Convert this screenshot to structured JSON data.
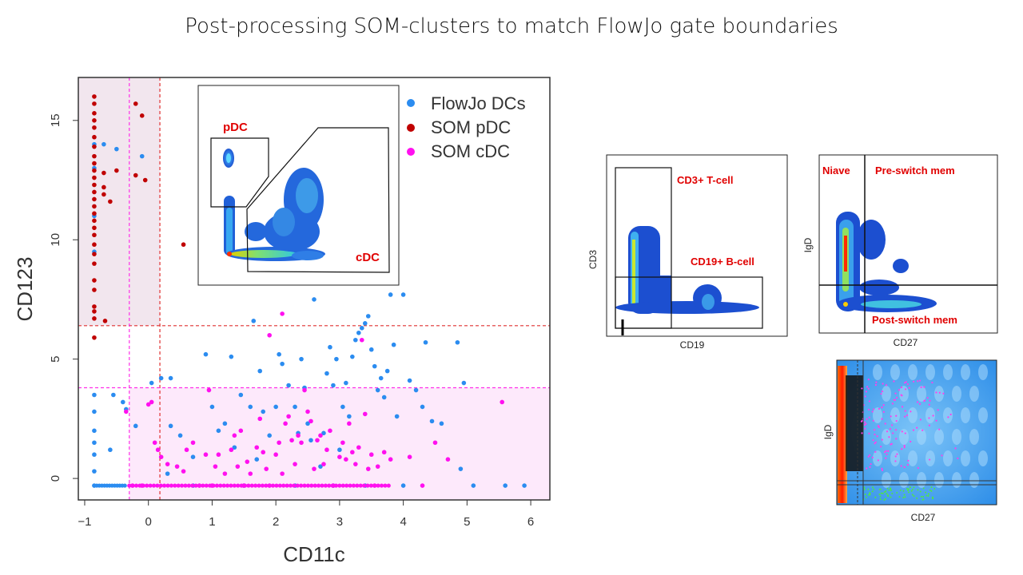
{
  "slide": {
    "title": "Post-processing SOM-clusters to match FlowJo gate boundaries"
  },
  "colors": {
    "flowjo_dc": "#2b8cf0",
    "som_pdc": "#c00000",
    "som_cdc": "#ff10ef",
    "pdc_region": "#f2e6ee",
    "cdc_region": "#fde9fb",
    "threshold_red": "#e03030",
    "threshold_magenta": "#ff30e8"
  },
  "chart_data": [
    {
      "type": "scatter",
      "title": "",
      "xlabel": "CD11c",
      "ylabel": "CD123",
      "xlim": [
        -1.1,
        6.3
      ],
      "ylim": [
        -0.9,
        16.8
      ],
      "xticks": [
        "-1",
        "0",
        "1",
        "2",
        "3",
        "4",
        "5",
        "6"
      ],
      "yticks": [
        "0",
        "5",
        "10",
        "15"
      ],
      "legend_position": "top-right",
      "thresholds": {
        "pdc_x": 0.18,
        "pdc_y": 6.4,
        "cdc_x": -0.3,
        "cdc_y": 3.8
      },
      "series": [
        {
          "name": "FlowJo DCs",
          "points": [
            [
              -0.85,
              -0.3
            ],
            [
              -0.85,
              0.3
            ],
            [
              -0.85,
              1.0
            ],
            [
              -0.85,
              1.5
            ],
            [
              -0.85,
              2.0
            ],
            [
              -0.85,
              2.8
            ],
            [
              -0.85,
              3.5
            ],
            [
              -0.85,
              14.0
            ],
            [
              -0.85,
              13.0
            ],
            [
              -0.85,
              11.0
            ],
            [
              -0.85,
              9.5
            ],
            [
              -0.7,
              14.0
            ],
            [
              -0.5,
              13.8
            ],
            [
              -0.55,
              3.5
            ],
            [
              -0.4,
              3.2
            ],
            [
              -0.35,
              2.9
            ],
            [
              -0.2,
              2.2
            ],
            [
              -0.6,
              1.2
            ],
            [
              -0.1,
              13.5
            ],
            [
              0.05,
              4.0
            ],
            [
              0.2,
              4.2
            ],
            [
              0.35,
              4.2
            ],
            [
              0.35,
              2.2
            ],
            [
              0.5,
              1.8
            ],
            [
              0.7,
              0.9
            ],
            [
              0.3,
              0.2
            ],
            [
              0.9,
              5.2
            ],
            [
              1.0,
              3.0
            ],
            [
              1.1,
              2.0
            ],
            [
              1.2,
              2.3
            ],
            [
              1.3,
              5.1
            ],
            [
              1.35,
              1.3
            ],
            [
              1.45,
              3.5
            ],
            [
              1.6,
              3.0
            ],
            [
              1.75,
              4.5
            ],
            [
              1.8,
              2.8
            ],
            [
              1.9,
              1.8
            ],
            [
              1.7,
              0.8
            ],
            [
              1.65,
              6.6
            ],
            [
              2.0,
              3.0
            ],
            [
              2.05,
              5.2
            ],
            [
              2.1,
              4.8
            ],
            [
              2.2,
              3.9
            ],
            [
              2.3,
              3.0
            ],
            [
              2.35,
              1.9
            ],
            [
              2.4,
              5.0
            ],
            [
              2.45,
              3.8
            ],
            [
              2.5,
              2.3
            ],
            [
              2.55,
              1.6
            ],
            [
              2.6,
              7.5
            ],
            [
              2.7,
              0.5
            ],
            [
              2.75,
              1.9
            ],
            [
              2.8,
              4.4
            ],
            [
              2.85,
              5.5
            ],
            [
              2.9,
              3.9
            ],
            [
              2.95,
              5.0
            ],
            [
              3.0,
              1.2
            ],
            [
              3.05,
              3.0
            ],
            [
              3.1,
              4.0
            ],
            [
              3.15,
              2.6
            ],
            [
              3.2,
              5.1
            ],
            [
              3.25,
              5.8
            ],
            [
              3.3,
              6.1
            ],
            [
              3.35,
              6.3
            ],
            [
              3.4,
              6.5
            ],
            [
              3.45,
              6.8
            ],
            [
              3.5,
              5.4
            ],
            [
              3.55,
              4.7
            ],
            [
              3.6,
              3.7
            ],
            [
              3.65,
              4.2
            ],
            [
              3.7,
              3.4
            ],
            [
              3.75,
              4.5
            ],
            [
              3.8,
              7.7
            ],
            [
              3.85,
              5.6
            ],
            [
              3.9,
              2.6
            ],
            [
              4.0,
              7.7
            ],
            [
              4.1,
              4.1
            ],
            [
              4.2,
              3.7
            ],
            [
              4.3,
              3.0
            ],
            [
              4.35,
              5.7
            ],
            [
              4.45,
              2.4
            ],
            [
              4.6,
              2.3
            ],
            [
              4.85,
              5.7
            ],
            [
              4.95,
              4.0
            ],
            [
              4.9,
              0.4
            ],
            [
              5.6,
              -0.3
            ],
            [
              5.9,
              -0.3
            ],
            [
              5.1,
              -0.3
            ],
            [
              4.0,
              -0.3
            ],
            [
              3.4,
              -0.3
            ],
            [
              2.9,
              -0.3
            ],
            [
              0.7,
              -0.3
            ],
            [
              1.5,
              -0.3
            ],
            [
              2.3,
              -0.3
            ]
          ]
        },
        {
          "name": "SOM pDC",
          "points": [
            [
              -0.85,
              16.0
            ],
            [
              -0.85,
              15.7
            ],
            [
              -0.85,
              15.3
            ],
            [
              -0.85,
              15.0
            ],
            [
              -0.85,
              14.7
            ],
            [
              -0.85,
              14.3
            ],
            [
              -0.85,
              13.9
            ],
            [
              -0.85,
              13.5
            ],
            [
              -0.85,
              13.2
            ],
            [
              -0.85,
              12.9
            ],
            [
              -0.85,
              12.6
            ],
            [
              -0.85,
              12.3
            ],
            [
              -0.85,
              12.0
            ],
            [
              -0.85,
              11.7
            ],
            [
              -0.85,
              11.4
            ],
            [
              -0.85,
              11.1
            ],
            [
              -0.85,
              10.8
            ],
            [
              -0.85,
              10.5
            ],
            [
              -0.85,
              10.2
            ],
            [
              -0.85,
              9.8
            ],
            [
              -0.85,
              9.4
            ],
            [
              -0.85,
              9.0
            ],
            [
              -0.85,
              8.3
            ],
            [
              -0.85,
              7.9
            ],
            [
              -0.85,
              7.2
            ],
            [
              -0.85,
              7.0
            ],
            [
              -0.85,
              6.7
            ],
            [
              -0.85,
              5.9
            ],
            [
              -0.7,
              12.8
            ],
            [
              -0.7,
              12.2
            ],
            [
              -0.7,
              11.9
            ],
            [
              -0.68,
              6.6
            ],
            [
              -0.6,
              11.6
            ],
            [
              -0.5,
              12.9
            ],
            [
              -0.2,
              15.7
            ],
            [
              -0.1,
              15.2
            ],
            [
              -0.2,
              12.7
            ],
            [
              -0.05,
              12.5
            ],
            [
              0.55,
              9.8
            ]
          ]
        },
        {
          "name": "SOM cDC",
          "points": [
            [
              -0.35,
              2.8
            ],
            [
              -0.25,
              -0.3
            ],
            [
              -0.1,
              -0.3
            ],
            [
              0.0,
              3.1
            ],
            [
              0.05,
              3.2
            ],
            [
              0.1,
              1.5
            ],
            [
              0.15,
              1.2
            ],
            [
              0.2,
              0.9
            ],
            [
              0.3,
              0.6
            ],
            [
              0.45,
              0.5
            ],
            [
              0.55,
              0.3
            ],
            [
              0.6,
              1.2
            ],
            [
              0.7,
              1.5
            ],
            [
              0.8,
              -0.3
            ],
            [
              0.9,
              1.0
            ],
            [
              0.95,
              3.7
            ],
            [
              1.0,
              -0.3
            ],
            [
              1.05,
              0.5
            ],
            [
              1.1,
              1.0
            ],
            [
              1.2,
              0.2
            ],
            [
              1.3,
              1.2
            ],
            [
              1.35,
              1.8
            ],
            [
              1.4,
              0.5
            ],
            [
              1.45,
              2.0
            ],
            [
              1.5,
              -0.3
            ],
            [
              1.55,
              0.7
            ],
            [
              1.6,
              0.2
            ],
            [
              1.7,
              1.3
            ],
            [
              1.75,
              2.5
            ],
            [
              1.8,
              1.1
            ],
            [
              1.85,
              0.4
            ],
            [
              1.9,
              -0.3
            ],
            [
              2.0,
              1.0
            ],
            [
              2.05,
              1.5
            ],
            [
              2.1,
              0.2
            ],
            [
              2.15,
              2.3
            ],
            [
              2.2,
              2.6
            ],
            [
              2.25,
              1.6
            ],
            [
              2.3,
              0.6
            ],
            [
              2.35,
              1.8
            ],
            [
              2.4,
              1.5
            ],
            [
              2.45,
              3.7
            ],
            [
              2.5,
              2.8
            ],
            [
              2.55,
              2.4
            ],
            [
              2.6,
              0.4
            ],
            [
              2.65,
              1.6
            ],
            [
              2.7,
              1.8
            ],
            [
              2.75,
              0.6
            ],
            [
              2.8,
              1.2
            ],
            [
              2.85,
              2.0
            ],
            [
              2.9,
              -0.3
            ],
            [
              3.0,
              0.9
            ],
            [
              3.05,
              1.5
            ],
            [
              3.1,
              0.8
            ],
            [
              3.15,
              2.3
            ],
            [
              3.2,
              1.1
            ],
            [
              3.25,
              0.6
            ],
            [
              3.3,
              1.3
            ],
            [
              3.35,
              5.8
            ],
            [
              3.4,
              2.7
            ],
            [
              3.45,
              0.4
            ],
            [
              3.5,
              1.0
            ],
            [
              3.55,
              -0.3
            ],
            [
              3.6,
              0.5
            ],
            [
              3.7,
              1.1
            ],
            [
              3.8,
              0.8
            ],
            [
              4.1,
              0.9
            ],
            [
              4.3,
              -0.3
            ],
            [
              4.5,
              1.5
            ],
            [
              4.7,
              0.8
            ],
            [
              5.55,
              3.2
            ],
            [
              2.1,
              6.9
            ],
            [
              1.9,
              6.0
            ]
          ]
        }
      ],
      "baseline_points": {
        "series": "SOM cDC",
        "y": -0.3,
        "x_from": -0.3,
        "x_to": 3.8
      },
      "baseline_blue": {
        "series": "FlowJo DCs",
        "y": -0.3,
        "x_from": -0.85,
        "x_to": -0.35
      }
    }
  ],
  "inset": {
    "gates": {
      "pdc": "pDC",
      "cdc": "cDC"
    }
  },
  "panel_tcell": {
    "xlabel": "CD19",
    "ylabel": "CD3",
    "gates": {
      "tcell": "CD3+ T-cell",
      "bcell": "CD19+ B-cell"
    }
  },
  "panel_igd": {
    "xlabel": "CD27",
    "ylabel": "IgD",
    "gates": {
      "naive": "Niave",
      "preswitch": "Pre-switch mem",
      "postswitch": "Post-switch mem"
    }
  },
  "panel_igd2": {
    "xlabel": "CD27",
    "ylabel": "IgD"
  }
}
